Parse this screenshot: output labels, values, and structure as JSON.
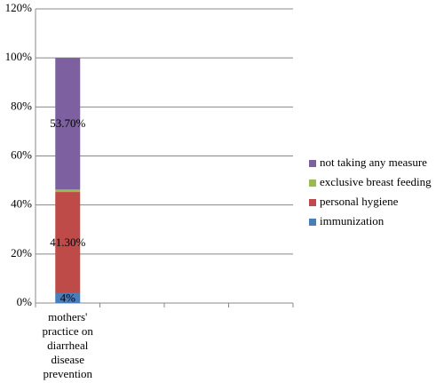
{
  "chart_data": {
    "type": "stacked-bar",
    "categories": [
      "mothers' practice on diarrheal disease prevention",
      null,
      null,
      null
    ],
    "series": [
      {
        "name": "immunization",
        "color": "#4a7ebb",
        "values": [
          4,
          null,
          null,
          null
        ],
        "value_labels": [
          "4%",
          null,
          null,
          null
        ]
      },
      {
        "name": "personal hygiene",
        "color": "#be4b48",
        "values": [
          41.3,
          null,
          null,
          null
        ],
        "value_labels": [
          "41.30%",
          null,
          null,
          null
        ]
      },
      {
        "name": "exclusive breast feeding",
        "color": "#98b954",
        "values": [
          1,
          null,
          null,
          null
        ]
      },
      {
        "name": "not taking any measure",
        "color": "#7d60a0",
        "values": [
          53.7,
          null,
          null,
          null
        ],
        "value_labels": [
          "53.70%",
          null,
          null,
          null
        ]
      }
    ],
    "ylim": [
      0,
      120
    ],
    "yticks": [
      {
        "value": 0,
        "label": "0%"
      },
      {
        "value": 20,
        "label": "20%"
      },
      {
        "value": 40,
        "label": "40%"
      },
      {
        "value": 60,
        "label": "60%"
      },
      {
        "value": 80,
        "label": "80%"
      },
      {
        "value": 100,
        "label": "100%"
      },
      {
        "value": 120,
        "label": "120%"
      }
    ],
    "grid": true,
    "legend": "right"
  }
}
